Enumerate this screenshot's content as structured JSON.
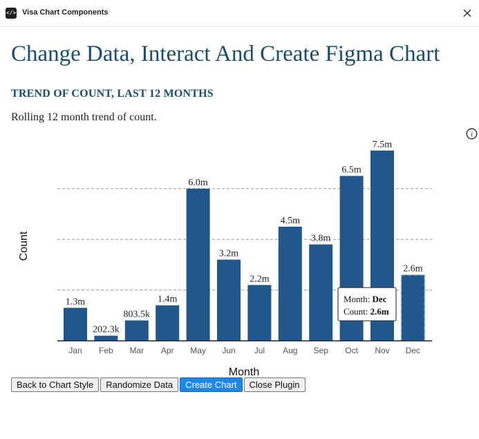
{
  "window": {
    "title": "Visa Chart Components",
    "icon": "code-icon",
    "close_icon": "close-icon"
  },
  "page": {
    "title": "Change Data, Interact And Create Figma Chart",
    "subtitle": "TREND OF COUNT, LAST 12 MONTHS",
    "description": "Rolling 12 month trend of count."
  },
  "info_icon": "info-icon",
  "chart_data": {
    "type": "bar",
    "categories": [
      "Jan",
      "Feb",
      "Mar",
      "Apr",
      "May",
      "Jun",
      "Jul",
      "Aug",
      "Sep",
      "Oct",
      "Nov",
      "Dec"
    ],
    "values": [
      1300000,
      202300,
      803500,
      1400000,
      6000000,
      3200000,
      2200000,
      4500000,
      3800000,
      6500000,
      7500000,
      2600000
    ],
    "value_labels": [
      "1.3m",
      "202.3k",
      "803.5k",
      "1.4m",
      "6.0m",
      "3.2m",
      "2.2m",
      "4.5m",
      "3.8m",
      "6.5m",
      "7.5m",
      "2.6m"
    ],
    "xlabel": "Month",
    "ylabel": "Count",
    "grid": true,
    "bar_color": "#21578a",
    "highlighted_index": 11,
    "tooltip": {
      "month_label": "Month: ",
      "month_value": "Dec",
      "count_label": "Count: ",
      "count_value": "2.6m"
    }
  },
  "buttons": {
    "back": "Back to Chart Style",
    "randomize": "Randomize Data",
    "create": "Create Chart",
    "close": "Close Plugin"
  }
}
